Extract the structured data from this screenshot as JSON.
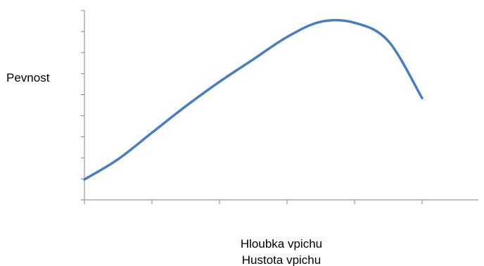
{
  "chart_data": {
    "type": "line",
    "title": "",
    "ylabel": "Pevnost",
    "xlabel": [
      "Hloubka vpichu",
      "Hustota vpichu"
    ],
    "x_tick_count": 6,
    "y_tick_count": 10,
    "grid": false,
    "legend": "none",
    "series": [
      {
        "color": "#4a7ebb",
        "x": [
          0,
          0.5,
          1.0,
          1.5,
          2.0,
          2.5,
          3.0,
          3.5,
          4.0,
          4.5,
          5.0
        ],
        "y": [
          1.0,
          2.0,
          3.3,
          4.6,
          5.8,
          6.9,
          8.0,
          8.75,
          8.7,
          7.8,
          5.0
        ]
      }
    ],
    "xlim": [
      0,
      5
    ],
    "ylim": [
      0,
      9.3
    ]
  }
}
